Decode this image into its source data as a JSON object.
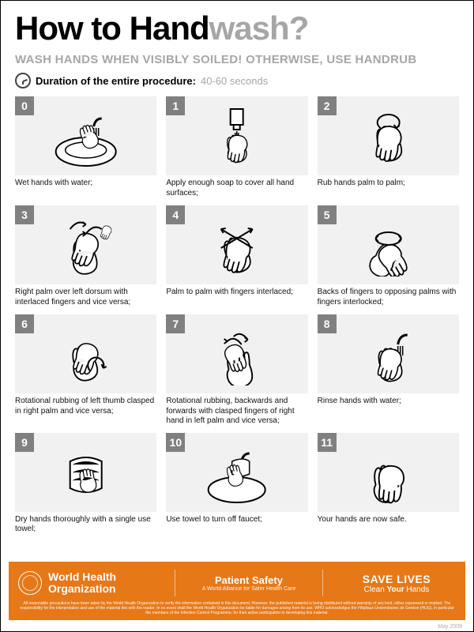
{
  "title": {
    "part1": "How to Hand",
    "part2": "wash",
    "part3": "?"
  },
  "subtitle": "WASH HANDS WHEN VISIBLY SOILED! OTHERWISE, USE HANDRUB",
  "duration": {
    "label": "Duration of the entire procedure:",
    "value": "40-60 seconds"
  },
  "colors": {
    "step_bg": "#f1f1f1",
    "step_num_bg": "#808080",
    "step_num_fg": "#ffffff",
    "footer_bg": "#e77817",
    "footer_fg": "#ffffff",
    "title_gray": "#a6a6a6"
  },
  "steps": [
    {
      "num": "0",
      "caption": "Wet hands with water;"
    },
    {
      "num": "1",
      "caption": "Apply enough soap to cover all hand surfaces;"
    },
    {
      "num": "2",
      "caption": "Rub hands palm to palm;"
    },
    {
      "num": "3",
      "caption": "Right palm over left dorsum with interlaced fingers and vice versa;"
    },
    {
      "num": "4",
      "caption": "Palm to palm with fingers interlaced;"
    },
    {
      "num": "5",
      "caption": "Backs of fingers to opposing palms with fingers interlocked;"
    },
    {
      "num": "6",
      "caption": "Rotational rubbing of left thumb clasped in right palm and vice versa;"
    },
    {
      "num": "7",
      "caption": "Rotational rubbing, backwards and forwards with clasped fingers of right hand in left palm and vice versa;"
    },
    {
      "num": "8",
      "caption": "Rinse hands with water;"
    },
    {
      "num": "9",
      "caption": "Dry hands thoroughly with a single use towel;"
    },
    {
      "num": "10",
      "caption": "Use towel to turn off faucet;"
    },
    {
      "num": "11",
      "caption": "Your hands are now safe."
    }
  ],
  "footer": {
    "who": {
      "line1": "World Health",
      "line2": "Organization"
    },
    "patient_safety": {
      "title": "Patient Safety",
      "sub": "A World Alliance for Safer Health Care"
    },
    "save_lives": {
      "title": "SAVE LIVES",
      "sub_pre": "Clean ",
      "sub_bold": "Your",
      "sub_post": " Hands"
    },
    "disclaimer": "All reasonable precautions have been taken by the World Health Organization to verify the information contained in this document. However, the published material is being distributed without warranty of any kind, either expressed or implied. The responsibility for the interpretation and use of the material lies with the reader. In no event shall the World Health Organization be liable for damages arising from its use. WHO acknowledges the Hôpitaux Universitaires de Genève (HUG), in particular the members of the Infection Control Programme, for their active participation in developing this material."
  },
  "date": "May 2009"
}
